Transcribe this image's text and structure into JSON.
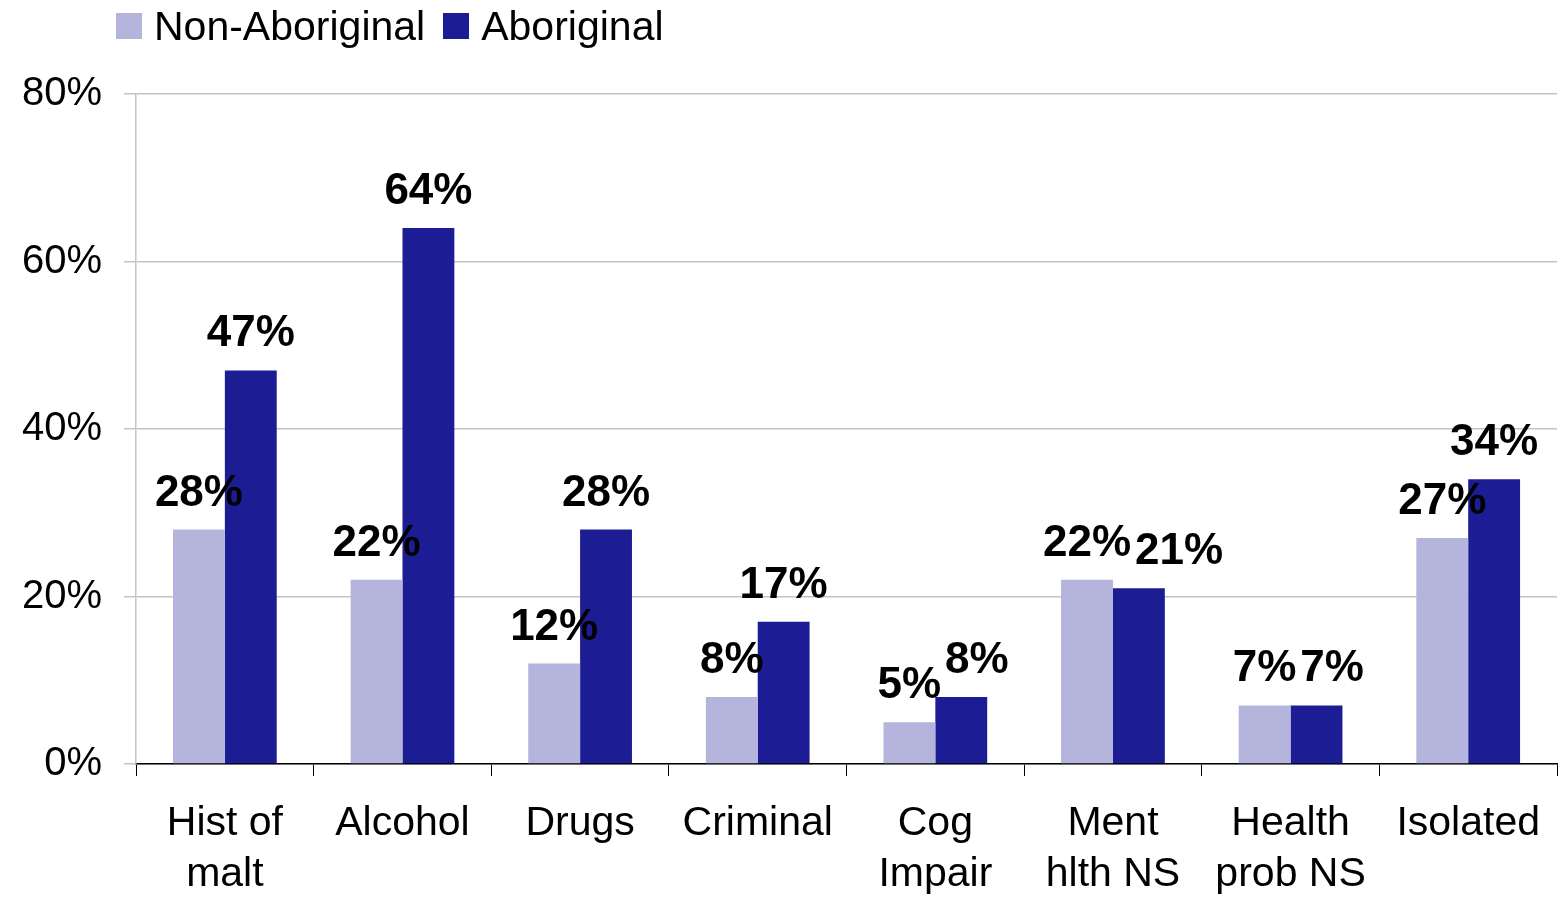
{
  "chart_data": {
    "type": "bar",
    "categories": [
      "Hist of malt",
      "Alcohol",
      "Drugs",
      "Criminal",
      "Cog Impair",
      "Ment hlth NS",
      "Health prob NS",
      "Isolated"
    ],
    "series": [
      {
        "name": "Non-Aboriginal",
        "color": "#b4b4dc",
        "values": [
          28,
          22,
          12,
          8,
          5,
          22,
          7,
          27
        ],
        "value_labels": [
          "28%",
          "22%",
          "12%",
          "8%",
          "5%",
          "22%",
          "7%",
          "27%"
        ]
      },
      {
        "name": "Aboriginal",
        "color": "#1c1c94",
        "values": [
          47,
          64,
          28,
          17,
          8,
          21,
          7,
          34
        ],
        "value_labels": [
          "47%",
          "64%",
          "28%",
          "17%",
          "8%",
          "21%",
          "7%",
          "34%"
        ]
      }
    ],
    "ylim": [
      0,
      80
    ],
    "yticks": [
      {
        "value": 0,
        "label": "0%"
      },
      {
        "value": 20,
        "label": "20%"
      },
      {
        "value": 40,
        "label": "40%"
      },
      {
        "value": 60,
        "label": "60%"
      },
      {
        "value": 80,
        "label": "80%"
      }
    ],
    "grid": "y",
    "legend": "top left"
  }
}
